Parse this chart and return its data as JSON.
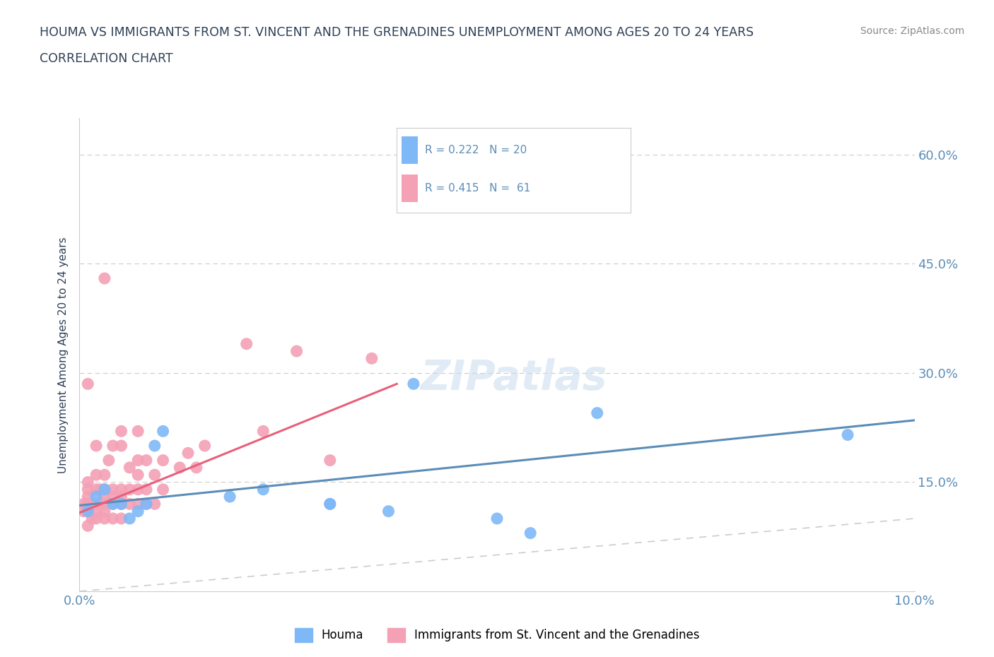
{
  "title_line1": "HOUMA VS IMMIGRANTS FROM ST. VINCENT AND THE GRENADINES UNEMPLOYMENT AMONG AGES 20 TO 24 YEARS",
  "title_line2": "CORRELATION CHART",
  "source": "Source: ZipAtlas.com",
  "ylabel": "Unemployment Among Ages 20 to 24 years",
  "xlim": [
    0.0,
    0.1
  ],
  "ylim": [
    0.0,
    0.65
  ],
  "yticks": [
    0.15,
    0.3,
    0.45,
    0.6
  ],
  "ytick_labels": [
    "15.0%",
    "30.0%",
    "45.0%",
    "60.0%"
  ],
  "xticks": [
    0.0,
    0.025,
    0.05,
    0.075,
    0.1
  ],
  "xtick_labels": [
    "0.0%",
    "",
    "",
    "",
    "10.0%"
  ],
  "houma_color": "#7EB8F7",
  "svg_color": "#F4A0B5",
  "houma_R": 0.222,
  "houma_N": 20,
  "svg_R": 0.415,
  "svg_N": 61,
  "watermark": "ZIPatlas",
  "houma_scatter_x": [
    0.001,
    0.002,
    0.003,
    0.004,
    0.005,
    0.006,
    0.007,
    0.008,
    0.009,
    0.01,
    0.018,
    0.022,
    0.03,
    0.03,
    0.037,
    0.04,
    0.05,
    0.054,
    0.062,
    0.092
  ],
  "houma_scatter_y": [
    0.11,
    0.13,
    0.14,
    0.12,
    0.12,
    0.1,
    0.11,
    0.12,
    0.2,
    0.22,
    0.13,
    0.14,
    0.12,
    0.12,
    0.11,
    0.285,
    0.1,
    0.08,
    0.245,
    0.215
  ],
  "svg_scatter_x": [
    0.0005,
    0.0005,
    0.001,
    0.001,
    0.001,
    0.001,
    0.001,
    0.001,
    0.001,
    0.0015,
    0.0015,
    0.002,
    0.002,
    0.002,
    0.002,
    0.002,
    0.002,
    0.0025,
    0.003,
    0.003,
    0.003,
    0.003,
    0.003,
    0.003,
    0.003,
    0.0035,
    0.004,
    0.004,
    0.004,
    0.004,
    0.004,
    0.005,
    0.005,
    0.005,
    0.005,
    0.005,
    0.005,
    0.006,
    0.006,
    0.006,
    0.007,
    0.007,
    0.007,
    0.007,
    0.007,
    0.008,
    0.008,
    0.008,
    0.009,
    0.009,
    0.01,
    0.01,
    0.012,
    0.013,
    0.014,
    0.015,
    0.02,
    0.022,
    0.026,
    0.03,
    0.035
  ],
  "svg_scatter_y": [
    0.11,
    0.12,
    0.09,
    0.11,
    0.12,
    0.13,
    0.14,
    0.15,
    0.285,
    0.1,
    0.12,
    0.1,
    0.11,
    0.12,
    0.14,
    0.16,
    0.2,
    0.14,
    0.1,
    0.11,
    0.12,
    0.13,
    0.14,
    0.16,
    0.43,
    0.18,
    0.1,
    0.12,
    0.13,
    0.14,
    0.2,
    0.1,
    0.12,
    0.13,
    0.14,
    0.2,
    0.22,
    0.12,
    0.14,
    0.17,
    0.12,
    0.14,
    0.16,
    0.18,
    0.22,
    0.12,
    0.14,
    0.18,
    0.12,
    0.16,
    0.14,
    0.18,
    0.17,
    0.19,
    0.17,
    0.2,
    0.34,
    0.22,
    0.33,
    0.18,
    0.32
  ],
  "title_color": "#2E4057",
  "axis_color": "#2E4057",
  "tick_color": "#5B8DB8",
  "grid_color": "#CCCCCC",
  "legend_R_color": "#5B8DB8",
  "diagonal_color": "#CCCCCC",
  "houma_line_color": "#5B8DB8",
  "svg_line_color": "#E8607A",
  "houma_line_x": [
    0.0,
    0.1
  ],
  "houma_line_y": [
    0.118,
    0.235
  ],
  "svg_line_x": [
    0.0,
    0.038
  ],
  "svg_line_y": [
    0.108,
    0.285
  ]
}
